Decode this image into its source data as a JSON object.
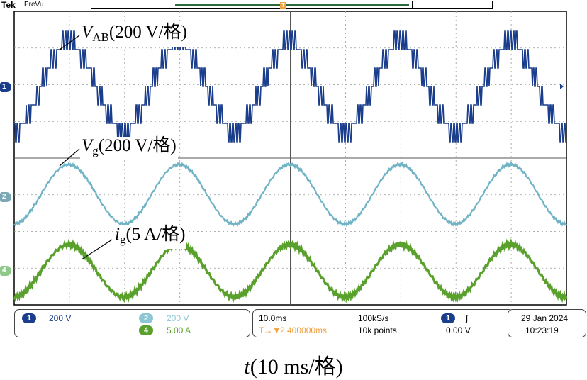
{
  "topbar": {
    "brand": "Tek",
    "mode": "PreVu",
    "trigger_marker": "T"
  },
  "channels": [
    {
      "id": "1",
      "color": "#1a3d8c",
      "label_pre": "",
      "label_var": "V",
      "label_sub": "AB",
      "label_post": "(200 V/格)"
    },
    {
      "id": "2",
      "color": "#5fa9bd",
      "label_pre": "",
      "label_var": "V",
      "label_sub": "g",
      "label_post": "(200 V/格)"
    },
    {
      "id": "4",
      "color": "#5aa02c",
      "label_pre": "",
      "label_var": "i",
      "label_sub": "g",
      "label_post": "(5 A/格)"
    }
  ],
  "status": {
    "ch1_num": "1",
    "ch1_scale": "200 V",
    "ch2_num": "2",
    "ch2_scale": "200 V",
    "ch4_num": "4",
    "ch4_scale": "5.00 A",
    "timebase": "10.0ms",
    "sample_rate": "100kS/s",
    "trigger_pos_icon": "T→▼",
    "trigger_pos": "2.400000ms",
    "record_length": "10k points",
    "trig_ch": "1",
    "trig_slope": "∫",
    "trig_level": "0.00 V",
    "date": "29 Jan  2024",
    "time": "10:23:19"
  },
  "axis_caption": {
    "var": "t",
    "text": "(10 ms/格)"
  },
  "colors": {
    "ch1": "#1a3d8c",
    "ch2": "#6fb3c5",
    "ch4": "#5aa02c",
    "trigger": "#f0a040"
  }
}
